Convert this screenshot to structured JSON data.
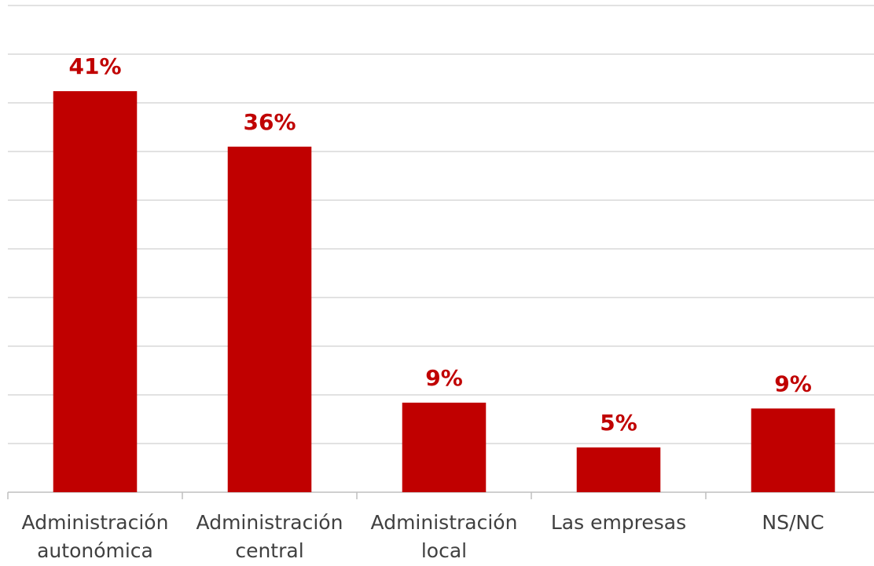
{
  "chart_data": {
    "type": "bar",
    "categories": [
      "Administración autonómica",
      "Administración central",
      "Administración local",
      "Las empresas",
      "NS/NC"
    ],
    "values": [
      41.2,
      35.5,
      9.2,
      4.6,
      8.6
    ],
    "value_labels": [
      "41%",
      "36%",
      "9%",
      "5%",
      "9%"
    ],
    "color": "#c00000",
    "ylim": [
      0,
      50
    ],
    "yticks": [
      0,
      5,
      10,
      15,
      20,
      25,
      30,
      35,
      40,
      45,
      50
    ],
    "grid": true
  }
}
